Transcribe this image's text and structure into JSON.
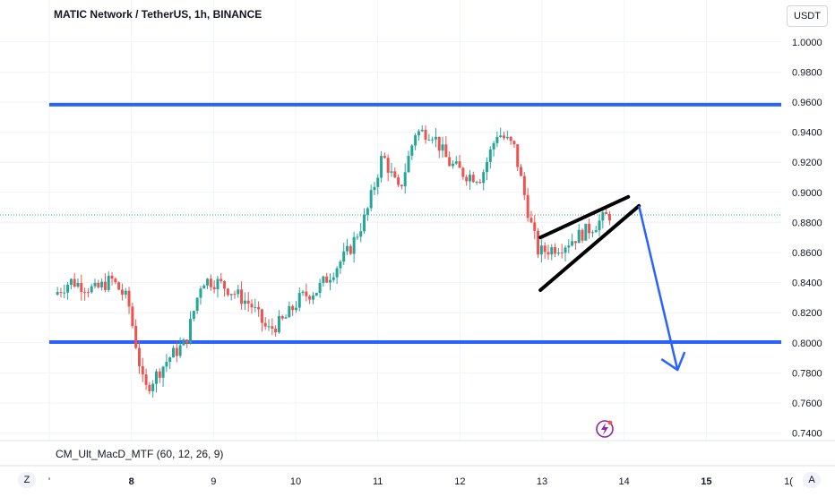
{
  "header": {
    "title": "MATIC Network / TetherUS, 1h, BINANCE",
    "currency": "USDT"
  },
  "indicator": {
    "label": "CM_Ult_MacD_MTF (60, 12, 26, 9)"
  },
  "buttons": {
    "z_label": "Z",
    "a_label": "A"
  },
  "colors": {
    "up": "#26a69a",
    "down": "#ef5350",
    "level_line": "#2962ff",
    "grid": "#f0f3fa",
    "arrow": "#2962ff",
    "wedge": "#000000",
    "badge": "#8e24aa"
  },
  "chart_data": {
    "type": "candlestick",
    "y_axis": {
      "min": 0.735,
      "max": 1.01,
      "ticks": [
        "1.0000",
        "0.9800",
        "0.9600",
        "0.9400",
        "0.9200",
        "0.9000",
        "0.8800",
        "0.8600",
        "0.8400",
        "0.8200",
        "0.8000",
        "0.7800",
        "0.7600",
        "0.7400"
      ]
    },
    "x_axis": {
      "labels": [
        {
          "text": "'",
          "day": 7.0,
          "bold": false
        },
        {
          "text": "8",
          "day": 8.0,
          "bold": true
        },
        {
          "text": "9",
          "day": 9.0,
          "bold": false
        },
        {
          "text": "10",
          "day": 10.0,
          "bold": false
        },
        {
          "text": "11",
          "day": 11.0,
          "bold": false
        },
        {
          "text": "12",
          "day": 12.0,
          "bold": false
        },
        {
          "text": "13",
          "day": 13.0,
          "bold": false
        },
        {
          "text": "14",
          "day": 14.0,
          "bold": false
        },
        {
          "text": "15",
          "day": 15.0,
          "bold": true
        },
        {
          "text": "1(",
          "day": 16.0,
          "bold": false
        }
      ],
      "day_range": [
        7.1,
        15.95
      ]
    },
    "levels": [
      {
        "value": 0.9583,
        "label": "0.9583"
      },
      {
        "value": 0.8005,
        "label": "0.8005"
      }
    ],
    "last_price": {
      "value": 0.885,
      "label": "0.8850"
    },
    "wedge": {
      "upper": [
        [
          12.98,
          0.87
        ],
        [
          14.05,
          0.897
        ]
      ],
      "lower": [
        [
          12.98,
          0.835
        ],
        [
          14.18,
          0.891
        ]
      ]
    },
    "projection": [
      [
        14.18,
        0.891
      ],
      [
        14.65,
        0.782
      ]
    ],
    "price_path": [
      [
        7.1,
        0.832
      ],
      [
        7.3,
        0.841
      ],
      [
        7.6,
        0.835
      ],
      [
        7.8,
        0.842
      ],
      [
        8.0,
        0.828
      ],
      [
        8.2,
        0.768
      ],
      [
        8.5,
        0.79
      ],
      [
        8.7,
        0.8
      ],
      [
        8.9,
        0.842
      ],
      [
        9.1,
        0.84
      ],
      [
        9.3,
        0.833
      ],
      [
        9.5,
        0.825
      ],
      [
        9.7,
        0.808
      ],
      [
        9.9,
        0.815
      ],
      [
        10.1,
        0.83
      ],
      [
        10.3,
        0.835
      ],
      [
        10.5,
        0.848
      ],
      [
        10.7,
        0.862
      ],
      [
        10.9,
        0.885
      ],
      [
        11.1,
        0.925
      ],
      [
        11.3,
        0.9
      ],
      [
        11.5,
        0.94
      ],
      [
        11.7,
        0.94
      ],
      [
        11.9,
        0.92
      ],
      [
        12.1,
        0.912
      ],
      [
        12.3,
        0.91
      ],
      [
        12.5,
        0.94
      ],
      [
        12.7,
        0.93
      ],
      [
        12.9,
        0.88
      ],
      [
        13.0,
        0.86
      ],
      [
        13.3,
        0.865
      ],
      [
        13.6,
        0.875
      ],
      [
        13.85,
        0.885
      ]
    ]
  }
}
